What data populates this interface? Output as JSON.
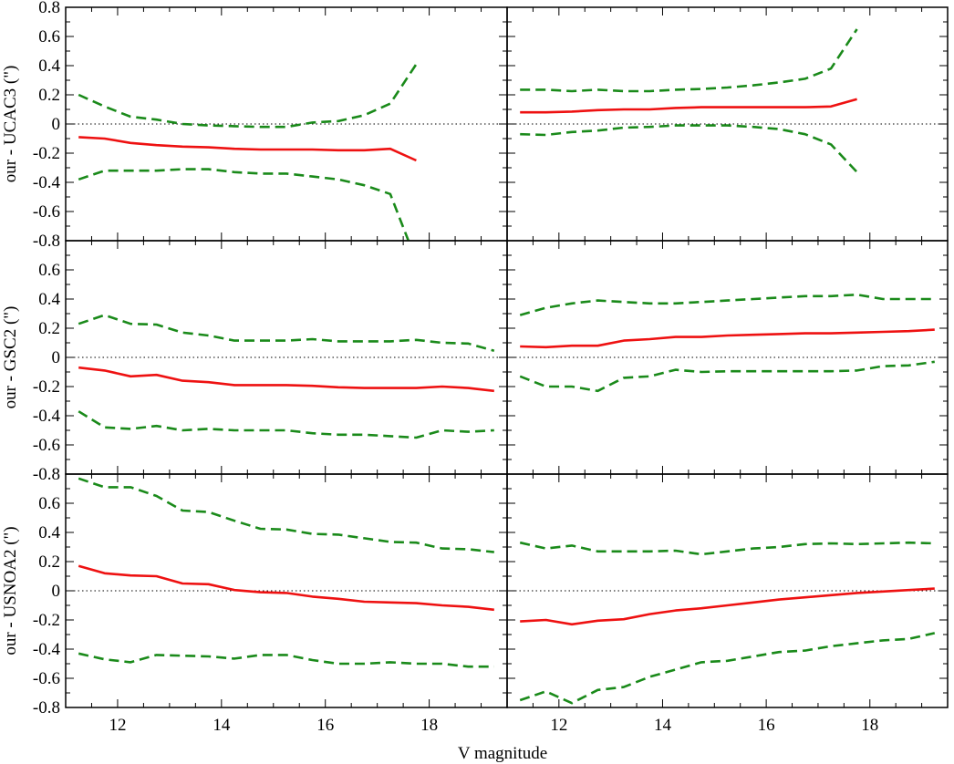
{
  "figure": {
    "xlabel": "V magnitude",
    "colors": {
      "mean": "#ee1111",
      "band": "#1a8a1a",
      "zero": "#000000"
    }
  },
  "chart_data": [
    {
      "type": "line",
      "row": 0,
      "col": 0,
      "ylabel": "our - UCAC3 (\")",
      "xlim": [
        11,
        19.5
      ],
      "ylim": [
        -0.8,
        0.8
      ],
      "x": [
        11.25,
        11.75,
        12.25,
        12.75,
        13.25,
        13.75,
        14.25,
        14.75,
        15.25,
        15.75,
        16.25,
        16.75,
        17.25,
        17.75
      ],
      "series": [
        {
          "role": "mean",
          "style": "solid",
          "values": [
            -0.09,
            -0.1,
            -0.13,
            -0.145,
            -0.155,
            -0.16,
            -0.17,
            -0.175,
            -0.175,
            -0.175,
            -0.18,
            -0.18,
            -0.17,
            -0.25
          ]
        },
        {
          "role": "upper",
          "style": "dashed",
          "values": [
            0.2,
            0.12,
            0.05,
            0.03,
            0.0,
            -0.01,
            -0.015,
            -0.02,
            -0.02,
            0.01,
            0.02,
            0.06,
            0.14,
            0.41
          ]
        },
        {
          "role": "lower",
          "style": "dashed",
          "x": [
            11.25,
            11.75,
            12.25,
            12.75,
            13.25,
            13.75,
            14.25,
            14.75,
            15.25,
            15.75,
            16.25,
            16.75,
            17.25,
            17.6
          ],
          "values": [
            -0.38,
            -0.32,
            -0.32,
            -0.32,
            -0.31,
            -0.31,
            -0.33,
            -0.34,
            -0.34,
            -0.36,
            -0.38,
            -0.42,
            -0.48,
            -0.8
          ]
        }
      ]
    },
    {
      "type": "line",
      "row": 0,
      "col": 1,
      "ylabel": "",
      "xlim": [
        11,
        19.5
      ],
      "ylim": [
        -0.8,
        0.8
      ],
      "x": [
        11.25,
        11.75,
        12.25,
        12.75,
        13.25,
        13.75,
        14.25,
        14.75,
        15.25,
        15.75,
        16.25,
        16.75,
        17.25,
        17.75
      ],
      "series": [
        {
          "role": "mean",
          "style": "solid",
          "values": [
            0.08,
            0.08,
            0.085,
            0.095,
            0.1,
            0.1,
            0.11,
            0.115,
            0.115,
            0.115,
            0.115,
            0.115,
            0.12,
            0.17
          ]
        },
        {
          "role": "upper",
          "style": "dashed",
          "values": [
            0.235,
            0.235,
            0.225,
            0.235,
            0.225,
            0.225,
            0.235,
            0.24,
            0.25,
            0.265,
            0.285,
            0.31,
            0.38,
            0.65
          ]
        },
        {
          "role": "lower",
          "style": "dashed",
          "values": [
            -0.07,
            -0.075,
            -0.055,
            -0.045,
            -0.025,
            -0.02,
            -0.01,
            -0.01,
            -0.01,
            -0.02,
            -0.035,
            -0.07,
            -0.14,
            -0.33
          ]
        }
      ]
    },
    {
      "type": "line",
      "row": 1,
      "col": 0,
      "ylabel": "our - GSC2 (\")",
      "xlim": [
        11,
        19.5
      ],
      "ylim": [
        -0.8,
        0.8
      ],
      "x": [
        11.25,
        11.75,
        12.25,
        12.75,
        13.25,
        13.75,
        14.25,
        14.75,
        15.25,
        15.75,
        16.25,
        16.75,
        17.25,
        17.75,
        18.25,
        18.75,
        19.25
      ],
      "series": [
        {
          "role": "mean",
          "style": "solid",
          "values": [
            -0.07,
            -0.09,
            -0.13,
            -0.12,
            -0.16,
            -0.17,
            -0.19,
            -0.19,
            -0.19,
            -0.195,
            -0.205,
            -0.21,
            -0.21,
            -0.21,
            -0.2,
            -0.21,
            -0.23
          ]
        },
        {
          "role": "upper",
          "style": "dashed",
          "values": [
            0.23,
            0.29,
            0.23,
            0.225,
            0.17,
            0.15,
            0.115,
            0.115,
            0.115,
            0.125,
            0.11,
            0.11,
            0.11,
            0.12,
            0.1,
            0.095,
            0.045
          ]
        },
        {
          "role": "lower",
          "style": "dashed",
          "values": [
            -0.37,
            -0.48,
            -0.49,
            -0.47,
            -0.5,
            -0.49,
            -0.5,
            -0.5,
            -0.5,
            -0.52,
            -0.53,
            -0.53,
            -0.54,
            -0.55,
            -0.5,
            -0.51,
            -0.5
          ]
        }
      ]
    },
    {
      "type": "line",
      "row": 1,
      "col": 1,
      "ylabel": "",
      "xlim": [
        11,
        19.5
      ],
      "ylim": [
        -0.8,
        0.8
      ],
      "x": [
        11.25,
        11.75,
        12.25,
        12.75,
        13.25,
        13.75,
        14.25,
        14.75,
        15.25,
        15.75,
        16.25,
        16.75,
        17.25,
        17.75,
        18.25,
        18.75,
        19.25
      ],
      "series": [
        {
          "role": "mean",
          "style": "solid",
          "values": [
            0.075,
            0.07,
            0.08,
            0.08,
            0.115,
            0.125,
            0.14,
            0.14,
            0.15,
            0.155,
            0.16,
            0.165,
            0.165,
            0.17,
            0.175,
            0.18,
            0.19
          ]
        },
        {
          "role": "upper",
          "style": "dashed",
          "values": [
            0.29,
            0.34,
            0.37,
            0.39,
            0.38,
            0.37,
            0.37,
            0.38,
            0.39,
            0.4,
            0.41,
            0.42,
            0.42,
            0.43,
            0.4,
            0.4,
            0.4
          ]
        },
        {
          "role": "lower",
          "style": "dashed",
          "values": [
            -0.13,
            -0.2,
            -0.2,
            -0.23,
            -0.14,
            -0.13,
            -0.085,
            -0.1,
            -0.095,
            -0.095,
            -0.095,
            -0.095,
            -0.095,
            -0.09,
            -0.06,
            -0.055,
            -0.03
          ]
        }
      ]
    },
    {
      "type": "line",
      "row": 2,
      "col": 0,
      "ylabel": "our - USNOA2 (\")",
      "xlim": [
        11,
        19.5
      ],
      "ylim": [
        -0.8,
        0.8
      ],
      "x": [
        11.25,
        11.75,
        12.25,
        12.75,
        13.25,
        13.75,
        14.25,
        14.75,
        15.25,
        15.75,
        16.25,
        16.75,
        17.25,
        17.75,
        18.25,
        18.75,
        19.25
      ],
      "series": [
        {
          "role": "mean",
          "style": "solid",
          "values": [
            0.17,
            0.12,
            0.105,
            0.1,
            0.05,
            0.045,
            0.005,
            -0.01,
            -0.015,
            -0.04,
            -0.055,
            -0.075,
            -0.08,
            -0.085,
            -0.1,
            -0.11,
            -0.13
          ]
        },
        {
          "role": "upper",
          "style": "dashed",
          "values": [
            0.77,
            0.71,
            0.71,
            0.65,
            0.55,
            0.54,
            0.48,
            0.425,
            0.42,
            0.39,
            0.385,
            0.36,
            0.335,
            0.33,
            0.29,
            0.285,
            0.265
          ]
        },
        {
          "role": "lower",
          "style": "dashed",
          "values": [
            -0.43,
            -0.47,
            -0.49,
            -0.44,
            -0.445,
            -0.45,
            -0.465,
            -0.44,
            -0.44,
            -0.475,
            -0.5,
            -0.5,
            -0.49,
            -0.5,
            -0.5,
            -0.52,
            -0.52
          ]
        }
      ]
    },
    {
      "type": "line",
      "row": 2,
      "col": 1,
      "ylabel": "",
      "xlim": [
        11,
        19.5
      ],
      "ylim": [
        -0.8,
        0.8
      ],
      "x": [
        11.25,
        11.75,
        12.25,
        12.75,
        13.25,
        13.75,
        14.25,
        14.75,
        15.25,
        15.75,
        16.25,
        16.75,
        17.25,
        17.75,
        18.25,
        18.75,
        19.25
      ],
      "series": [
        {
          "role": "mean",
          "style": "solid",
          "values": [
            -0.21,
            -0.2,
            -0.23,
            -0.205,
            -0.195,
            -0.16,
            -0.135,
            -0.12,
            -0.1,
            -0.08,
            -0.06,
            -0.045,
            -0.03,
            -0.015,
            -0.005,
            0.005,
            0.015
          ]
        },
        {
          "role": "upper",
          "style": "dashed",
          "values": [
            0.33,
            0.29,
            0.31,
            0.27,
            0.27,
            0.27,
            0.275,
            0.25,
            0.27,
            0.29,
            0.3,
            0.32,
            0.325,
            0.32,
            0.325,
            0.33,
            0.325
          ]
        },
        {
          "role": "lower",
          "style": "dashed",
          "values": [
            -0.75,
            -0.69,
            -0.77,
            -0.68,
            -0.66,
            -0.59,
            -0.54,
            -0.49,
            -0.48,
            -0.45,
            -0.42,
            -0.41,
            -0.38,
            -0.36,
            -0.34,
            -0.33,
            -0.29
          ]
        }
      ]
    }
  ]
}
